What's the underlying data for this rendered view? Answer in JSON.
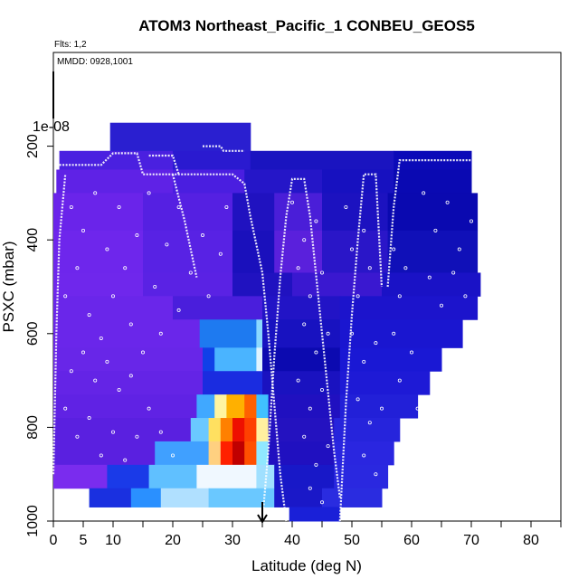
{
  "chart_data": {
    "type": "heatmap",
    "title": "ATOM3 Northeast_Pacific_1 CONBEU_GEOS5",
    "flights_label": "Flts: 1,2",
    "date_label": "MMDD: 0928,1001",
    "xlabel": "Latitude (deg N)",
    "ylabel": "PSXC (mbar)",
    "xlim": [
      0,
      85
    ],
    "ylim": [
      1000,
      0
    ],
    "x_ticks": [
      "0",
      "5",
      "10",
      "20",
      "30",
      "40",
      "50",
      "60",
      "70",
      "80"
    ],
    "x_tick_values": [
      0,
      5,
      10,
      20,
      30,
      40,
      50,
      60,
      70,
      80
    ],
    "y_ticks": [
      "200",
      "400",
      "600",
      "800",
      "1000"
    ],
    "y_tick_values": [
      200,
      400,
      600,
      800,
      1000
    ],
    "scale_label": "1e-08",
    "marker_arrow_lat": 35,
    "curtain_rows": [
      {
        "p0": 150,
        "p1": 210,
        "segs": [
          [
            9.5,
            33,
            "#2a1fd0"
          ]
        ]
      },
      {
        "p0": 210,
        "p1": 250,
        "segs": [
          [
            1,
            20,
            "#4a20e0"
          ],
          [
            20,
            33,
            "#2a1ad0"
          ],
          [
            33,
            57,
            "#1a14c0"
          ],
          [
            57,
            70,
            "#0b0ab8"
          ]
        ]
      },
      {
        "p0": 250,
        "p1": 300,
        "segs": [
          [
            0.5,
            20,
            "#5f22e6"
          ],
          [
            20,
            32,
            "#4a1ee0"
          ],
          [
            32,
            45,
            "#2516c8"
          ],
          [
            45,
            57,
            "#1711c0"
          ],
          [
            57,
            70,
            "#0a09b2"
          ]
        ]
      },
      {
        "p0": 300,
        "p1": 380,
        "segs": [
          [
            0,
            15,
            "#6a24ea"
          ],
          [
            15,
            30,
            "#5520e2"
          ],
          [
            30,
            37,
            "#2012c0"
          ],
          [
            37,
            45,
            "#4a1ed8"
          ],
          [
            45,
            56,
            "#1c12c0"
          ],
          [
            56,
            71,
            "#0a09b0"
          ]
        ]
      },
      {
        "p0": 380,
        "p1": 470,
        "segs": [
          [
            0,
            15,
            "#6e26ec"
          ],
          [
            15,
            30,
            "#5822e4"
          ],
          [
            30,
            37,
            "#1a10bc"
          ],
          [
            37,
            45,
            "#5a20dc"
          ],
          [
            45,
            56,
            "#2a16c8"
          ],
          [
            56,
            71,
            "#1010b8"
          ]
        ]
      },
      {
        "p0": 470,
        "p1": 520,
        "segs": [
          [
            0,
            15,
            "#6f27ec"
          ],
          [
            15,
            30,
            "#5a22e4"
          ],
          [
            30,
            40,
            "#2012c0"
          ],
          [
            40,
            55,
            "#3a18d0"
          ],
          [
            55,
            71.5,
            "#1a12c6"
          ]
        ]
      },
      {
        "p0": 520,
        "p1": 570,
        "segs": [
          [
            0,
            20,
            "#6a26ea"
          ],
          [
            20,
            35,
            "#4a1edc"
          ],
          [
            35,
            48,
            "#2214c6"
          ],
          [
            48,
            71,
            "#1c14cc"
          ]
        ]
      },
      {
        "p0": 570,
        "p1": 630,
        "segs": [
          [
            0,
            24.5,
            "#6a26ea"
          ],
          [
            24.5,
            34,
            "#1e7af0"
          ],
          [
            34,
            35,
            "#8ad8ff"
          ],
          [
            35,
            48,
            "#1812c0"
          ],
          [
            48,
            68.5,
            "#1a16d0"
          ]
        ]
      },
      {
        "p0": 630,
        "p1": 680,
        "segs": [
          [
            0,
            25,
            "#6826e8"
          ],
          [
            25,
            27,
            "#1040e8"
          ],
          [
            27,
            34,
            "#4ab4ff"
          ],
          [
            34,
            35,
            "#e0f4ff"
          ],
          [
            35,
            48,
            "#0c0ab0"
          ],
          [
            48,
            65,
            "#1a18d4"
          ]
        ]
      },
      {
        "p0": 680,
        "p1": 730,
        "segs": [
          [
            0,
            25,
            "#6424e6"
          ],
          [
            25,
            35,
            "#1a2ce0"
          ],
          [
            35,
            48,
            "#1a12c0"
          ],
          [
            48,
            63,
            "#1e1ad6"
          ]
        ]
      },
      {
        "p0": 730,
        "p1": 780,
        "segs": [
          [
            0,
            24,
            "#6022e4"
          ],
          [
            24,
            27,
            "#40a8ff"
          ],
          [
            27,
            29,
            "#fff4a0"
          ],
          [
            29,
            32,
            "#ffb000"
          ],
          [
            32,
            34,
            "#ff6000"
          ],
          [
            34,
            36,
            "#40c0ff"
          ],
          [
            36,
            48,
            "#2010c0"
          ],
          [
            48,
            61,
            "#2220d8"
          ]
        ]
      },
      {
        "p0": 780,
        "p1": 830,
        "segs": [
          [
            0,
            23,
            "#5a20e0"
          ],
          [
            23,
            26,
            "#6ac8ff"
          ],
          [
            26,
            28,
            "#ffe060"
          ],
          [
            28,
            30,
            "#ff8000"
          ],
          [
            30,
            32,
            "#ee1000"
          ],
          [
            32,
            34,
            "#ff4000"
          ],
          [
            34,
            36,
            "#fff0a0"
          ],
          [
            36,
            47,
            "#2412c0"
          ],
          [
            47,
            58,
            "#2624dc"
          ]
        ]
      },
      {
        "p0": 830,
        "p1": 880,
        "segs": [
          [
            0,
            17,
            "#5a20e0"
          ],
          [
            17,
            26,
            "#40a0ff"
          ],
          [
            26,
            28,
            "#ffd080"
          ],
          [
            28,
            30,
            "#ff2000"
          ],
          [
            30,
            32,
            "#c00000"
          ],
          [
            32,
            34,
            "#ff5000"
          ],
          [
            34,
            36,
            "#90e8ff"
          ],
          [
            36,
            47,
            "#2010c0"
          ],
          [
            47,
            57,
            "#2a26e0"
          ]
        ]
      },
      {
        "p0": 880,
        "p1": 930,
        "segs": [
          [
            0,
            9,
            "#7a2cee"
          ],
          [
            9,
            16,
            "#1a3ae8"
          ],
          [
            16,
            24,
            "#60c0ff"
          ],
          [
            24,
            34,
            "#f0f8ff"
          ],
          [
            34,
            37,
            "#a0e0ff"
          ],
          [
            37,
            47,
            "#1818c8"
          ],
          [
            47,
            56,
            "#2a28e0"
          ]
        ]
      },
      {
        "p0": 930,
        "p1": 970,
        "segs": [
          [
            6,
            13,
            "#1a30e0"
          ],
          [
            13,
            18,
            "#2a90ff"
          ],
          [
            18,
            26,
            "#b0e0ff"
          ],
          [
            26,
            37,
            "#6ac8ff"
          ],
          [
            37,
            45,
            "#1a18c8"
          ],
          [
            45,
            55,
            "#2a2ce0"
          ]
        ]
      },
      {
        "p0": 970,
        "p1": 1000,
        "segs": [
          [
            39.5,
            48,
            "#1a20d8"
          ]
        ]
      }
    ],
    "flight_track_lines": [
      [
        [
          1,
          240
        ],
        [
          8,
          240
        ],
        [
          10,
          215
        ],
        [
          14,
          215
        ],
        [
          15,
          260
        ],
        [
          30,
          260
        ],
        [
          32,
          280
        ],
        [
          33,
          350
        ],
        [
          35,
          470
        ],
        [
          36,
          600
        ],
        [
          37,
          750
        ],
        [
          38,
          900
        ],
        [
          39,
          1000
        ]
      ],
      [
        [
          16,
          220
        ],
        [
          20,
          220
        ],
        [
          21,
          260
        ]
      ],
      [
        [
          25,
          200
        ],
        [
          28,
          200
        ],
        [
          28.5,
          210
        ],
        [
          32,
          210
        ]
      ],
      [
        [
          35,
          1000
        ],
        [
          36,
          850
        ],
        [
          37,
          650
        ],
        [
          38,
          480
        ],
        [
          39,
          350
        ],
        [
          40,
          270
        ],
        [
          42,
          270
        ],
        [
          43,
          350
        ],
        [
          45,
          600
        ],
        [
          47,
          850
        ],
        [
          48,
          950
        ]
      ],
      [
        [
          48,
          1000
        ],
        [
          49,
          750
        ],
        [
          50,
          560
        ],
        [
          51,
          400
        ],
        [
          52,
          260
        ],
        [
          54,
          260
        ],
        [
          55,
          500
        ]
      ],
      [
        [
          56,
          500
        ],
        [
          57,
          330
        ],
        [
          58,
          230
        ],
        [
          70,
          230
        ]
      ],
      [
        [
          0,
          900
        ],
        [
          0.5,
          600
        ],
        [
          1,
          400
        ],
        [
          2,
          260
        ]
      ],
      [
        [
          20,
          260
        ],
        [
          22,
          360
        ],
        [
          24,
          480
        ]
      ]
    ],
    "flight_track_points": [
      [
        3,
        330
      ],
      [
        5,
        380
      ],
      [
        7,
        300
      ],
      [
        9,
        420
      ],
      [
        11,
        330
      ],
      [
        12,
        460
      ],
      [
        14,
        390
      ],
      [
        16,
        300
      ],
      [
        17,
        500
      ],
      [
        19,
        410
      ],
      [
        21,
        330
      ],
      [
        23,
        470
      ],
      [
        25,
        390
      ],
      [
        26,
        520
      ],
      [
        28,
        430
      ],
      [
        29,
        330
      ],
      [
        2,
        520
      ],
      [
        4,
        460
      ],
      [
        6,
        560
      ],
      [
        8,
        610
      ],
      [
        10,
        520
      ],
      [
        13,
        580
      ],
      [
        15,
        640
      ],
      [
        18,
        600
      ],
      [
        21,
        550
      ],
      [
        3,
        680
      ],
      [
        5,
        640
      ],
      [
        7,
        700
      ],
      [
        9,
        660
      ],
      [
        11,
        720
      ],
      [
        13,
        690
      ],
      [
        2,
        760
      ],
      [
        4,
        820
      ],
      [
        6,
        780
      ],
      [
        8,
        860
      ],
      [
        10,
        810
      ],
      [
        12,
        870
      ],
      [
        14,
        820
      ],
      [
        16,
        760
      ],
      [
        18,
        810
      ],
      [
        20,
        860
      ],
      [
        40,
        320
      ],
      [
        42,
        400
      ],
      [
        44,
        360
      ],
      [
        41,
        460
      ],
      [
        43,
        520
      ],
      [
        45,
        470
      ],
      [
        42,
        580
      ],
      [
        44,
        640
      ],
      [
        46,
        600
      ],
      [
        41,
        700
      ],
      [
        43,
        760
      ],
      [
        45,
        720
      ],
      [
        42,
        820
      ],
      [
        44,
        880
      ],
      [
        46,
        840
      ],
      [
        43,
        930
      ],
      [
        45,
        960
      ],
      [
        49,
        330
      ],
      [
        50,
        420
      ],
      [
        52,
        380
      ],
      [
        51,
        520
      ],
      [
        53,
        460
      ],
      [
        50,
        600
      ],
      [
        52,
        660
      ],
      [
        54,
        620
      ],
      [
        51,
        740
      ],
      [
        53,
        790
      ],
      [
        55,
        760
      ],
      [
        52,
        860
      ],
      [
        54,
        900
      ],
      [
        57,
        420
      ],
      [
        58,
        520
      ],
      [
        59,
        460
      ],
      [
        57,
        600
      ],
      [
        60,
        640
      ],
      [
        58,
        700
      ],
      [
        61,
        760
      ],
      [
        59,
        820
      ],
      [
        62,
        300
      ],
      [
        64,
        380
      ],
      [
        66,
        320
      ],
      [
        68,
        420
      ],
      [
        70,
        360
      ],
      [
        63,
        480
      ],
      [
        65,
        540
      ],
      [
        67,
        470
      ],
      [
        69,
        520
      ]
    ]
  }
}
